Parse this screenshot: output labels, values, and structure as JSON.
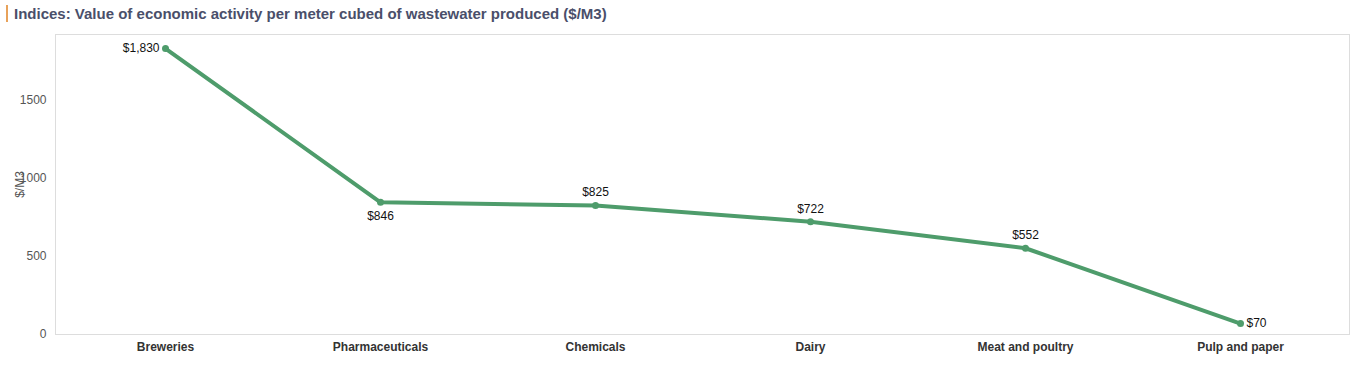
{
  "chart_data": {
    "type": "line",
    "title": "Indices: Value of economic activity per meter cubed of wastewater produced ($/M3)",
    "y_label": "$/M3",
    "categories": [
      "Breweries",
      "Pharmaceuticals",
      "Chemicals",
      "Dairy",
      "Meat and poultry",
      "Pulp and paper"
    ],
    "values": [
      1830,
      846,
      825,
      722,
      552,
      70
    ],
    "value_labels": [
      "$1,830",
      "$846",
      "$825",
      "$722",
      "$552",
      "$70"
    ],
    "color": "#4e9c6b",
    "marker": "circle",
    "data_labels": true,
    "grid": false,
    "ylim": [
      0,
      1920
    ],
    "yticks": [
      0,
      500,
      1000,
      1500
    ]
  }
}
